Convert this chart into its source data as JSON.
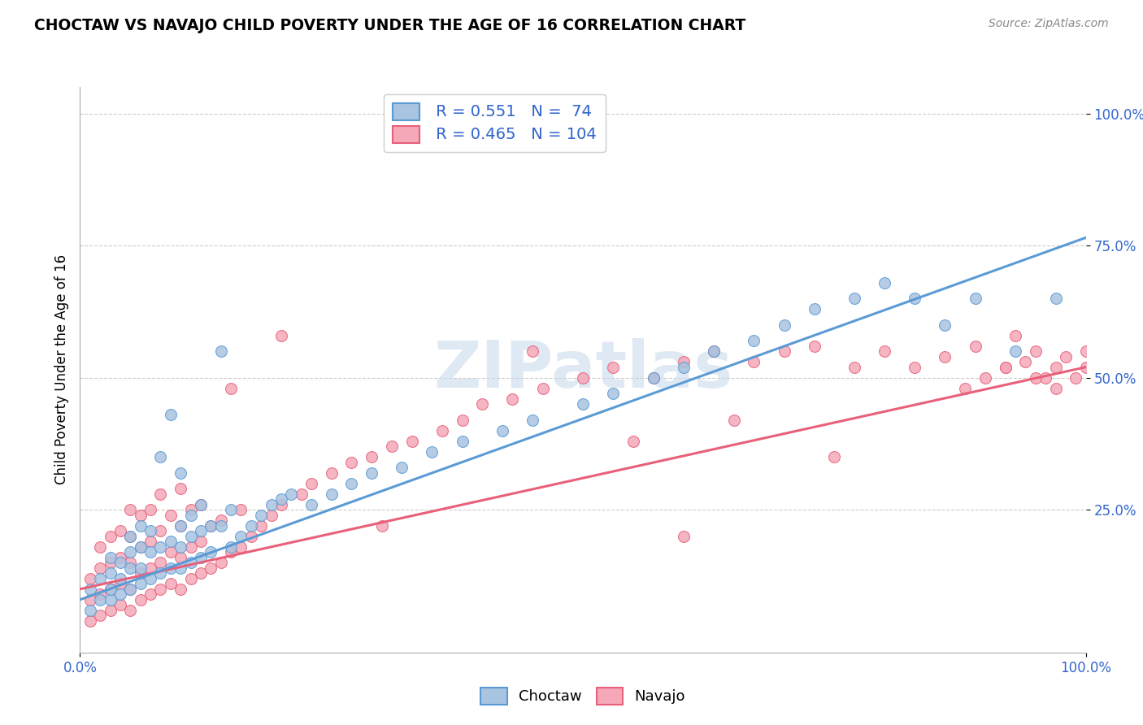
{
  "title": "CHOCTAW VS NAVAJO CHILD POVERTY UNDER THE AGE OF 16 CORRELATION CHART",
  "source": "Source: ZipAtlas.com",
  "ylabel": "Child Poverty Under the Age of 16",
  "xlim": [
    0,
    1
  ],
  "ylim": [
    -0.02,
    1.05
  ],
  "yticks": [
    0.25,
    0.5,
    0.75,
    1.0
  ],
  "ytick_labels": [
    "25.0%",
    "50.0%",
    "75.0%",
    "100.0%"
  ],
  "choctaw_color": "#a8c4e0",
  "navajo_color": "#f4a8b8",
  "choctaw_line_color": "#5b9bd5",
  "navajo_line_color": "#e8607a",
  "legend_r_choctaw": "R = 0.551",
  "legend_n_choctaw": "N =  74",
  "legend_r_navajo": "R = 0.465",
  "legend_n_navajo": "N = 104",
  "text_color": "#3366cc",
  "watermark_text": "ZIPatlas",
  "background_color": "#ffffff",
  "grid_color": "#cccccc",
  "choctaw_slope": 0.685,
  "choctaw_intercept": 0.08,
  "navajo_slope": 0.42,
  "navajo_intercept": 0.1,
  "choctaw_x": [
    0.01,
    0.01,
    0.02,
    0.02,
    0.03,
    0.03,
    0.03,
    0.03,
    0.04,
    0.04,
    0.04,
    0.05,
    0.05,
    0.05,
    0.05,
    0.06,
    0.06,
    0.06,
    0.06,
    0.07,
    0.07,
    0.07,
    0.08,
    0.08,
    0.08,
    0.09,
    0.09,
    0.09,
    0.1,
    0.1,
    0.1,
    0.1,
    0.11,
    0.11,
    0.11,
    0.12,
    0.12,
    0.12,
    0.13,
    0.13,
    0.14,
    0.14,
    0.15,
    0.15,
    0.16,
    0.17,
    0.18,
    0.19,
    0.2,
    0.21,
    0.23,
    0.25,
    0.27,
    0.29,
    0.32,
    0.35,
    0.38,
    0.42,
    0.45,
    0.5,
    0.53,
    0.57,
    0.6,
    0.63,
    0.67,
    0.7,
    0.73,
    0.77,
    0.8,
    0.83,
    0.86,
    0.89,
    0.93,
    0.97
  ],
  "choctaw_y": [
    0.06,
    0.1,
    0.08,
    0.12,
    0.08,
    0.1,
    0.13,
    0.16,
    0.09,
    0.12,
    0.15,
    0.1,
    0.14,
    0.17,
    0.2,
    0.11,
    0.14,
    0.18,
    0.22,
    0.12,
    0.17,
    0.21,
    0.13,
    0.18,
    0.35,
    0.14,
    0.19,
    0.43,
    0.14,
    0.18,
    0.22,
    0.32,
    0.15,
    0.2,
    0.24,
    0.16,
    0.21,
    0.26,
    0.17,
    0.22,
    0.55,
    0.22,
    0.18,
    0.25,
    0.2,
    0.22,
    0.24,
    0.26,
    0.27,
    0.28,
    0.26,
    0.28,
    0.3,
    0.32,
    0.33,
    0.36,
    0.38,
    0.4,
    0.42,
    0.45,
    0.47,
    0.5,
    0.52,
    0.55,
    0.57,
    0.6,
    0.63,
    0.65,
    0.68,
    0.65,
    0.6,
    0.65,
    0.55,
    0.65
  ],
  "navajo_x": [
    0.01,
    0.01,
    0.01,
    0.02,
    0.02,
    0.02,
    0.02,
    0.03,
    0.03,
    0.03,
    0.03,
    0.04,
    0.04,
    0.04,
    0.04,
    0.05,
    0.05,
    0.05,
    0.05,
    0.05,
    0.06,
    0.06,
    0.06,
    0.06,
    0.07,
    0.07,
    0.07,
    0.07,
    0.08,
    0.08,
    0.08,
    0.08,
    0.09,
    0.09,
    0.09,
    0.1,
    0.1,
    0.1,
    0.1,
    0.11,
    0.11,
    0.11,
    0.12,
    0.12,
    0.12,
    0.13,
    0.13,
    0.14,
    0.14,
    0.15,
    0.16,
    0.16,
    0.17,
    0.18,
    0.19,
    0.2,
    0.22,
    0.23,
    0.25,
    0.27,
    0.29,
    0.31,
    0.33,
    0.36,
    0.38,
    0.4,
    0.43,
    0.46,
    0.5,
    0.53,
    0.57,
    0.6,
    0.63,
    0.67,
    0.7,
    0.73,
    0.77,
    0.8,
    0.83,
    0.86,
    0.89,
    0.9,
    0.92,
    0.93,
    0.94,
    0.95,
    0.96,
    0.97,
    0.98,
    0.99,
    1.0,
    1.0,
    0.97,
    0.95,
    0.92,
    0.88,
    0.75,
    0.6,
    0.45,
    0.3,
    0.2,
    0.15,
    0.65,
    0.55
  ],
  "navajo_y": [
    0.04,
    0.08,
    0.12,
    0.05,
    0.09,
    0.14,
    0.18,
    0.06,
    0.1,
    0.15,
    0.2,
    0.07,
    0.11,
    0.16,
    0.21,
    0.06,
    0.1,
    0.15,
    0.2,
    0.25,
    0.08,
    0.13,
    0.18,
    0.24,
    0.09,
    0.14,
    0.19,
    0.25,
    0.1,
    0.15,
    0.21,
    0.28,
    0.11,
    0.17,
    0.24,
    0.1,
    0.16,
    0.22,
    0.29,
    0.12,
    0.18,
    0.25,
    0.13,
    0.19,
    0.26,
    0.14,
    0.22,
    0.15,
    0.23,
    0.17,
    0.18,
    0.25,
    0.2,
    0.22,
    0.24,
    0.26,
    0.28,
    0.3,
    0.32,
    0.34,
    0.35,
    0.37,
    0.38,
    0.4,
    0.42,
    0.45,
    0.46,
    0.48,
    0.5,
    0.52,
    0.5,
    0.53,
    0.55,
    0.53,
    0.55,
    0.56,
    0.52,
    0.55,
    0.52,
    0.54,
    0.56,
    0.5,
    0.52,
    0.58,
    0.53,
    0.55,
    0.5,
    0.52,
    0.54,
    0.5,
    0.52,
    0.55,
    0.48,
    0.5,
    0.52,
    0.48,
    0.35,
    0.2,
    0.55,
    0.22,
    0.58,
    0.48,
    0.42,
    0.38
  ]
}
